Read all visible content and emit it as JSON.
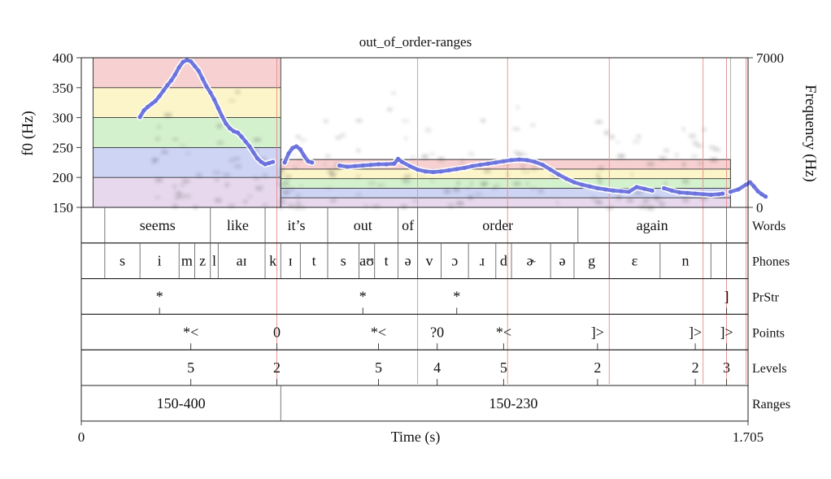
{
  "chart_data": {
    "type": "line",
    "title": "out_of_order-ranges",
    "xlabel": "Time (s)",
    "xlim": [
      0,
      1.705
    ],
    "x_ticks": [
      "0",
      "1.705"
    ],
    "ylabel_left": "f0 (Hz)",
    "ylim_left": [
      150,
      400
    ],
    "y_ticks_left": [
      "400",
      "350",
      "300",
      "250",
      "200",
      "150"
    ],
    "ylabel_right": "Frequency (Hz)",
    "ylim_right": [
      0,
      7000
    ],
    "y_ticks_right": [
      "7000",
      "0"
    ],
    "range_band_colors": [
      "#f6c9c9",
      "#fbf3c0",
      "#cdeec6",
      "#c6cdf2",
      "#e3d1ea"
    ],
    "spectrogram_extent": [
      0.03,
      1.66
    ],
    "range_regions": [
      {
        "start": 0.03,
        "end": 0.51,
        "min": 150,
        "max": 400,
        "band_edges": [
          150,
          200,
          250,
          300,
          350,
          400
        ]
      },
      {
        "start": 0.51,
        "end": 1.66,
        "min": 150,
        "max": 230,
        "band_edges": [
          150,
          166,
          182,
          198,
          214,
          230
        ]
      }
    ],
    "f0_series": [
      {
        "name": "",
        "points": [
          [
            0.15,
            301
          ],
          [
            0.16,
            312
          ],
          [
            0.17,
            318
          ],
          [
            0.18,
            323
          ],
          [
            0.19,
            328
          ],
          [
            0.2,
            336
          ],
          [
            0.21,
            345
          ],
          [
            0.22,
            354
          ],
          [
            0.23,
            362
          ],
          [
            0.24,
            372
          ],
          [
            0.25,
            384
          ],
          [
            0.26,
            393
          ],
          [
            0.27,
            396
          ],
          [
            0.28,
            394
          ],
          [
            0.29,
            386
          ],
          [
            0.3,
            378
          ],
          [
            0.31,
            365
          ],
          [
            0.32,
            352
          ],
          [
            0.33,
            342
          ],
          [
            0.34,
            330
          ],
          [
            0.35,
            316
          ],
          [
            0.36,
            302
          ],
          [
            0.37,
            290
          ],
          [
            0.38,
            282
          ],
          [
            0.39,
            277
          ],
          [
            0.4,
            275
          ],
          [
            0.41,
            268
          ],
          [
            0.42,
            260
          ],
          [
            0.43,
            252
          ],
          [
            0.44,
            242
          ],
          [
            0.45,
            232
          ],
          [
            0.46,
            226
          ],
          [
            0.47,
            222
          ],
          [
            0.48,
            224
          ],
          [
            0.49,
            226
          ]
        ]
      },
      {
        "name": "",
        "points": [
          [
            0.52,
            225
          ],
          [
            0.53,
            240
          ],
          [
            0.54,
            249
          ],
          [
            0.55,
            252
          ],
          [
            0.56,
            247
          ],
          [
            0.57,
            236
          ],
          [
            0.58,
            227
          ],
          [
            0.59,
            225
          ]
        ]
      },
      {
        "name": "",
        "points": [
          [
            0.66,
            220
          ],
          [
            0.68,
            218
          ],
          [
            0.7,
            219
          ],
          [
            0.72,
            220
          ],
          [
            0.74,
            221
          ],
          [
            0.76,
            222
          ],
          [
            0.78,
            222
          ],
          [
            0.8,
            223
          ],
          [
            0.81,
            231
          ],
          [
            0.82,
            226
          ],
          [
            0.84,
            219
          ],
          [
            0.86,
            213
          ],
          [
            0.88,
            210
          ],
          [
            0.9,
            209
          ],
          [
            0.92,
            210
          ],
          [
            0.94,
            212
          ],
          [
            0.96,
            214
          ],
          [
            0.98,
            216
          ],
          [
            1.0,
            219
          ],
          [
            1.02,
            221
          ],
          [
            1.04,
            223
          ],
          [
            1.06,
            225
          ],
          [
            1.08,
            227
          ],
          [
            1.1,
            229
          ],
          [
            1.12,
            230
          ],
          [
            1.14,
            229
          ],
          [
            1.16,
            226
          ],
          [
            1.18,
            221
          ],
          [
            1.2,
            213
          ],
          [
            1.22,
            205
          ],
          [
            1.24,
            198
          ],
          [
            1.26,
            192
          ],
          [
            1.28,
            188
          ],
          [
            1.3,
            185
          ],
          [
            1.32,
            182
          ],
          [
            1.34,
            180
          ],
          [
            1.36,
            178
          ],
          [
            1.38,
            177
          ],
          [
            1.4,
            176
          ],
          [
            1.42,
            184
          ],
          [
            1.44,
            181
          ],
          [
            1.46,
            178
          ]
        ]
      },
      {
        "name": "",
        "points": [
          [
            1.49,
            182
          ],
          [
            1.51,
            178
          ],
          [
            1.53,
            175
          ],
          [
            1.55,
            174
          ],
          [
            1.57,
            173
          ],
          [
            1.59,
            172
          ],
          [
            1.61,
            171
          ],
          [
            1.63,
            172
          ],
          [
            1.64,
            173
          ]
        ]
      },
      {
        "name": "",
        "points": [
          [
            1.66,
            176
          ],
          [
            1.68,
            180
          ],
          [
            1.7,
            188
          ],
          [
            1.71,
            192
          ],
          [
            1.72,
            185
          ],
          [
            1.73,
            177
          ],
          [
            1.74,
            172
          ],
          [
            1.75,
            168
          ]
        ]
      }
    ],
    "red_marker_times": [
      0.5,
      0.86,
      1.09,
      1.35,
      1.59,
      1.65,
      1.7
    ],
    "tiers": [
      {
        "name": "Words",
        "boundaries": [
          0.06,
          0.33,
          0.47,
          0.63,
          0.81,
          0.86,
          1.27,
          1.65
        ],
        "labels": [
          {
            "t": 0.195,
            "text": "seems"
          },
          {
            "t": 0.4,
            "text": "like"
          },
          {
            "t": 0.55,
            "text": "it’s"
          },
          {
            "t": 0.72,
            "text": "out"
          },
          {
            "t": 0.835,
            "text": "of"
          },
          {
            "t": 1.065,
            "text": "order"
          },
          {
            "t": 1.46,
            "text": "again"
          }
        ]
      },
      {
        "name": "Phones",
        "boundaries": [
          0.06,
          0.15,
          0.25,
          0.29,
          0.33,
          0.35,
          0.47,
          0.51,
          0.56,
          0.63,
          0.71,
          0.75,
          0.81,
          0.86,
          0.92,
          0.99,
          1.06,
          1.1,
          1.2,
          1.26,
          1.35,
          1.48,
          1.61,
          1.65
        ],
        "labels": [
          {
            "t": 0.105,
            "text": "s"
          },
          {
            "t": 0.2,
            "text": "i"
          },
          {
            "t": 0.27,
            "text": "m"
          },
          {
            "t": 0.31,
            "text": "z"
          },
          {
            "t": 0.34,
            "text": "l"
          },
          {
            "t": 0.41,
            "text": "aɪ"
          },
          {
            "t": 0.49,
            "text": "k"
          },
          {
            "t": 0.535,
            "text": "ɪ"
          },
          {
            "t": 0.595,
            "text": "t"
          },
          {
            "t": 0.67,
            "text": "s"
          },
          {
            "t": 0.73,
            "text": "aʊ"
          },
          {
            "t": 0.78,
            "text": "t"
          },
          {
            "t": 0.835,
            "text": "ə"
          },
          {
            "t": 0.89,
            "text": "v"
          },
          {
            "t": 0.955,
            "text": "ɔ"
          },
          {
            "t": 1.025,
            "text": "ɹ"
          },
          {
            "t": 1.08,
            "text": "d"
          },
          {
            "t": 1.15,
            "text": "ɚ"
          },
          {
            "t": 1.23,
            "text": "ə"
          },
          {
            "t": 1.305,
            "text": "g"
          },
          {
            "t": 1.415,
            "text": "ɛ"
          },
          {
            "t": 1.545,
            "text": "n"
          }
        ]
      },
      {
        "name": "PrStr",
        "points": [
          {
            "t": 0.2,
            "text": "*"
          },
          {
            "t": 0.72,
            "text": "*"
          },
          {
            "t": 0.96,
            "text": "*"
          },
          {
            "t": 1.65,
            "text": "]"
          }
        ]
      },
      {
        "name": "Points",
        "points": [
          {
            "t": 0.28,
            "text": "*<"
          },
          {
            "t": 0.5,
            "text": "0"
          },
          {
            "t": 0.76,
            "text": "*<"
          },
          {
            "t": 0.91,
            "text": "?0"
          },
          {
            "t": 1.08,
            "text": "*<"
          },
          {
            "t": 1.32,
            "text": "]>"
          },
          {
            "t": 1.57,
            "text": "]>"
          },
          {
            "t": 1.65,
            "text": "]>"
          }
        ]
      },
      {
        "name": "Levels",
        "points": [
          {
            "t": 0.28,
            "text": "5"
          },
          {
            "t": 0.5,
            "text": "2"
          },
          {
            "t": 0.76,
            "text": "5"
          },
          {
            "t": 0.91,
            "text": "4"
          },
          {
            "t": 1.08,
            "text": "5"
          },
          {
            "t": 1.32,
            "text": "2"
          },
          {
            "t": 1.57,
            "text": "2"
          },
          {
            "t": 1.65,
            "text": "3"
          }
        ]
      },
      {
        "name": "Ranges",
        "boundaries": [
          0.51
        ],
        "labels": [
          {
            "t": 0.255,
            "text": "150-400"
          },
          {
            "t": 1.105,
            "text": "150-230"
          }
        ]
      }
    ]
  }
}
